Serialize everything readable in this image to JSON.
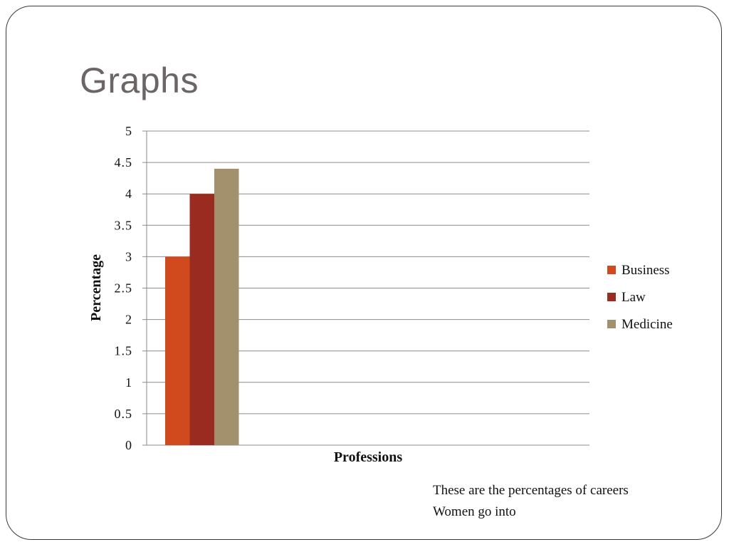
{
  "slide": {
    "title": "Graphs",
    "caption_lines": [
      "These are the percentages of careers",
      "Women go into"
    ]
  },
  "chart_data": {
    "type": "bar",
    "title": "",
    "xlabel": "Professions",
    "ylabel": "Percentage",
    "ylim": [
      0,
      5
    ],
    "yticks": [
      "0",
      "0.5",
      "1",
      "1.5",
      "2",
      "2.5",
      "3",
      "3.5",
      "4",
      "4.5",
      "5"
    ],
    "categories": [
      ""
    ],
    "series": [
      {
        "name": "Business",
        "values": [
          3
        ],
        "color": "#D14A1E"
      },
      {
        "name": "Law",
        "values": [
          4
        ],
        "color": "#9A2B20"
      },
      {
        "name": "Medicine",
        "values": [
          4.4
        ],
        "color": "#A3916D"
      }
    ],
    "grid": true,
    "legend_position": "right"
  }
}
